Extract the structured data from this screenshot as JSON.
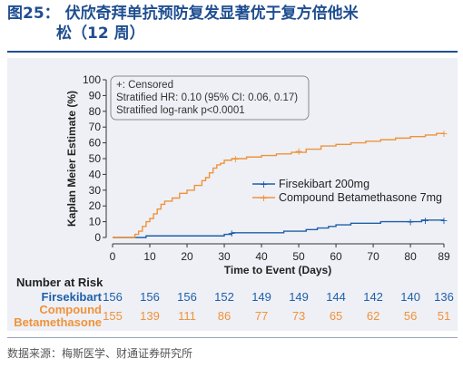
{
  "header": {
    "title_line1": "图25：  伏欣奇拜单抗预防复发显著优于复方倍他米",
    "title_line2": "松（12 周）"
  },
  "footer": {
    "source": "数据来源：梅斯医学、财通证券研究所"
  },
  "colors": {
    "title": "#1f4e91",
    "firsekibart": "#1f5fa8",
    "compound": "#f0923a",
    "panel": "#eef0f6"
  },
  "chart_data": {
    "type": "line",
    "subtype": "kaplan-meier",
    "xlabel": "Time to Event (Days)",
    "ylabel": "Kaplan Meier Estimate (%)",
    "xticks": [
      0,
      10,
      20,
      30,
      40,
      50,
      60,
      70,
      80,
      89
    ],
    "yticks": [
      0,
      10,
      20,
      30,
      40,
      50,
      60,
      70,
      80,
      90,
      100
    ],
    "xlim": [
      0,
      89
    ],
    "ylim": [
      0,
      100
    ],
    "grid": false,
    "legend_position": "right",
    "annotations": [
      "+: Censored",
      "Stratified HR: 0.10 (95% CI: 0.06, 0.17)",
      "Stratified log-rank p<0.0001"
    ],
    "series": [
      {
        "name": "Firsekibart 200mg",
        "color": "#1f5fa8",
        "points": [
          [
            0,
            0
          ],
          [
            8,
            0
          ],
          [
            9,
            1
          ],
          [
            29,
            1
          ],
          [
            30,
            2
          ],
          [
            32,
            3
          ],
          [
            44,
            3
          ],
          [
            46,
            4
          ],
          [
            52,
            5
          ],
          [
            55,
            6
          ],
          [
            58,
            7
          ],
          [
            60,
            8
          ],
          [
            64,
            9
          ],
          [
            70,
            9
          ],
          [
            72,
            10
          ],
          [
            81,
            10
          ],
          [
            83,
            11
          ],
          [
            89,
            11
          ]
        ],
        "censored": [
          [
            32,
            3
          ],
          [
            80,
            10
          ],
          [
            84,
            11
          ],
          [
            89,
            11
          ]
        ]
      },
      {
        "name": "Compound Betamethasone 7mg",
        "color": "#f0923a",
        "points": [
          [
            0,
            0
          ],
          [
            5,
            0
          ],
          [
            6,
            2
          ],
          [
            7,
            4
          ],
          [
            8,
            7
          ],
          [
            9,
            10
          ],
          [
            10,
            12
          ],
          [
            11,
            15
          ],
          [
            12,
            18
          ],
          [
            13,
            21
          ],
          [
            14,
            23
          ],
          [
            16,
            25
          ],
          [
            18,
            28
          ],
          [
            20,
            30
          ],
          [
            22,
            33
          ],
          [
            24,
            36
          ],
          [
            25,
            38
          ],
          [
            26,
            41
          ],
          [
            27,
            44
          ],
          [
            28,
            46
          ],
          [
            29,
            47
          ],
          [
            30,
            49
          ],
          [
            32,
            50
          ],
          [
            36,
            51
          ],
          [
            40,
            52
          ],
          [
            44,
            53
          ],
          [
            48,
            54
          ],
          [
            52,
            56
          ],
          [
            56,
            58
          ],
          [
            60,
            59
          ],
          [
            64,
            60
          ],
          [
            68,
            61
          ],
          [
            72,
            62
          ],
          [
            76,
            63
          ],
          [
            80,
            64
          ],
          [
            84,
            65
          ],
          [
            87,
            66
          ],
          [
            89,
            66
          ]
        ],
        "censored": [
          [
            33,
            50
          ],
          [
            50,
            55
          ],
          [
            89,
            66
          ]
        ]
      }
    ],
    "risk_table": {
      "header": "Number at Risk",
      "times": [
        0,
        10,
        20,
        30,
        40,
        50,
        60,
        70,
        80,
        89
      ],
      "rows": [
        {
          "label": "Firsekibart",
          "values": [
            "156",
            "156",
            "156",
            "152",
            "149",
            "149",
            "144",
            "142",
            "140",
            "136"
          ]
        },
        {
          "label_line1": "Compound",
          "label_line2": "Betamethasone",
          "values": [
            "155",
            "139",
            "111",
            "86",
            "77",
            "73",
            "65",
            "62",
            "56",
            "51"
          ]
        }
      ]
    }
  }
}
